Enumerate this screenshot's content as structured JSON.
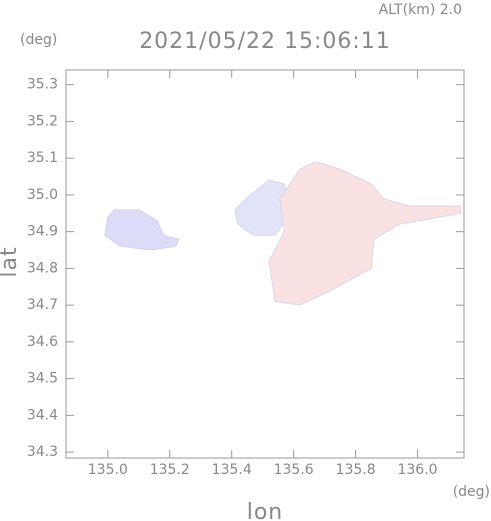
{
  "chart_data": {
    "type": "map",
    "title": "2021/05/22 15:06:11",
    "subtitle": "ALT(km) 2.0",
    "x_label": "lon",
    "y_label": "lat",
    "x_unit": "(deg)",
    "y_unit": "(deg)",
    "xlim": [
      134.865,
      136.15
    ],
    "ylim": [
      34.284,
      35.34
    ],
    "xticks": [
      {
        "value": 135.0,
        "label": "135.0"
      },
      135.2,
      135.4,
      135.6,
      135.8,
      {
        "value": 136.0,
        "label": "136.0"
      }
    ],
    "yticks": [
      34.3,
      34.4,
      34.5,
      34.6,
      34.7,
      34.8,
      34.9,
      {
        "value": 35.0,
        "label": "35.0"
      },
      35.1,
      35.2,
      35.3
    ],
    "regions": [
      {
        "color": "#dcdcf8",
        "x": [
          135.0,
          135.02,
          135.1,
          135.16,
          135.18,
          135.23,
          135.22,
          135.14,
          135.04,
          134.99
        ],
        "y": [
          34.94,
          34.96,
          34.96,
          34.93,
          34.89,
          34.88,
          34.86,
          34.85,
          34.86,
          34.89
        ]
      },
      {
        "color": "#e2e2f8",
        "x": [
          135.41,
          135.46,
          135.52,
          135.57,
          135.59,
          135.54,
          135.47,
          135.42
        ],
        "y": [
          34.96,
          35.0,
          35.04,
          35.03,
          34.95,
          34.89,
          34.89,
          34.92
        ]
      },
      {
        "color": "#fbe2e2",
        "x": [
          135.555,
          135.62,
          135.67,
          135.75,
          135.85,
          135.89,
          135.97,
          136.14,
          136.14,
          135.94,
          135.86,
          135.85,
          135.72,
          135.62,
          135.54,
          135.52,
          135.57
        ],
        "y": [
          34.99,
          35.07,
          35.09,
          35.07,
          35.03,
          34.99,
          34.97,
          34.97,
          34.95,
          34.92,
          34.88,
          34.8,
          34.74,
          34.7,
          34.71,
          34.82,
          34.9
        ]
      }
    ]
  }
}
